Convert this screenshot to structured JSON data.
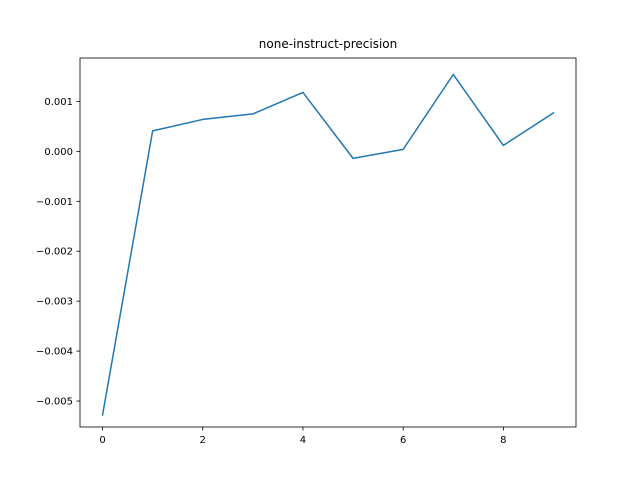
{
  "chart_data": {
    "type": "line",
    "title": "none-instruct-precision",
    "xlabel": "",
    "ylabel": "",
    "x": [
      0,
      1,
      2,
      3,
      4,
      5,
      6,
      7,
      8,
      9
    ],
    "series": [
      {
        "values": [
          -0.00528,
          0.00041,
          0.00064,
          0.00075,
          0.00118,
          -0.00014,
          4e-05,
          0.00154,
          0.00012,
          0.00077
        ]
      }
    ],
    "xlim": [
      -0.45,
      9.45
    ],
    "ylim": [
      -0.00552,
      0.00187
    ],
    "xticks": [
      0,
      2,
      4,
      6,
      8
    ],
    "xtick_labels": [
      "0",
      "2",
      "4",
      "6",
      "8"
    ],
    "yticks": [
      -0.005,
      -0.004,
      -0.003,
      -0.002,
      -0.001,
      0.0,
      0.001
    ],
    "ytick_labels": [
      "−0.005",
      "−0.004",
      "−0.003",
      "−0.002",
      "−0.001",
      "0.000",
      "0.001"
    ],
    "grid": false,
    "legend": "none",
    "colors": {
      "line": "#1f77b4",
      "axes": "#000000"
    }
  }
}
